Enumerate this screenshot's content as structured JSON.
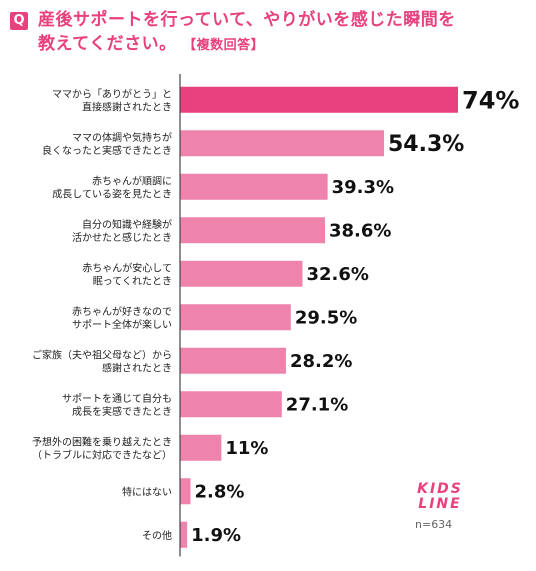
{
  "header": {
    "badge": "Q",
    "title_line1": "産後サポートを行っていて、やりがいを感じた瞬間を",
    "title_line2": "教えてください。",
    "title_note": "【複数回答】"
  },
  "logo": {
    "line1": "KIDS",
    "line2": "LINE"
  },
  "sample_size": "n=634",
  "colors": {
    "accent": "#e8417d",
    "top_bar": "#e8417d",
    "bar": "#ee84ac",
    "axis": "#444444"
  },
  "chart_data": {
    "type": "bar",
    "orientation": "horizontal",
    "xlim": [
      0,
      74
    ],
    "categories": [
      [
        "ママから「ありがとう」と",
        "直接感謝されたとき"
      ],
      [
        "ママの体調や気持ちが",
        "良くなったと実感できたとき"
      ],
      [
        "赤ちゃんが順調に",
        "成長している姿を見たとき"
      ],
      [
        "自分の知識や経験が",
        "活かせたと感じたとき"
      ],
      [
        "赤ちゃんが安心して",
        "眠ってくれたとき"
      ],
      [
        "赤ちゃんが好きなので",
        "サポート全体が楽しい"
      ],
      [
        "ご家族（夫や祖父母など）から",
        "感謝されたとき"
      ],
      [
        "サポートを通じて自分も",
        "成長を実感できたとき"
      ],
      [
        "予想外の困難を乗り越えたとき",
        "（トラブルに対応できたなど）"
      ],
      [
        "特にはない"
      ],
      [
        "その他"
      ]
    ],
    "values": [
      74,
      54.3,
      39.3,
      38.6,
      32.6,
      29.5,
      28.2,
      27.1,
      11,
      2.8,
      1.9
    ],
    "value_labels": [
      "74%",
      "54.3%",
      "39.3%",
      "38.6%",
      "32.6%",
      "29.5%",
      "28.2%",
      "27.1%",
      "11%",
      "2.8%",
      "1.9%"
    ]
  }
}
